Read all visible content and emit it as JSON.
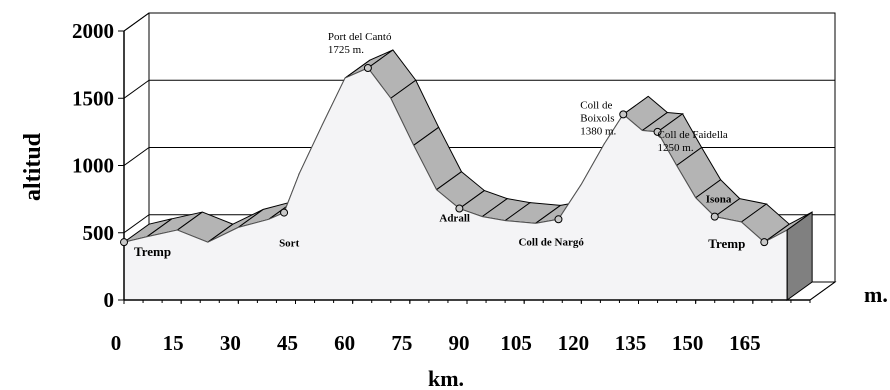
{
  "chart_data": {
    "type": "area",
    "title": "",
    "xlabel": "km.",
    "ylabel": "altitud",
    "y_unit": "m.",
    "xlim": [
      0,
      180
    ],
    "ylim": [
      0,
      2000
    ],
    "x_ticks": [
      "0",
      "15",
      "30",
      "45",
      "60",
      "75",
      "90",
      "105",
      "120",
      "135",
      "150",
      "165"
    ],
    "y_ticks": [
      "0",
      "500",
      "1000",
      "1500",
      "2000"
    ],
    "grid": "horizontal",
    "profile": [
      {
        "km": 0,
        "alt": 430
      },
      {
        "km": 6,
        "alt": 470
      },
      {
        "km": 14,
        "alt": 520
      },
      {
        "km": 22,
        "alt": 430
      },
      {
        "km": 30,
        "alt": 540
      },
      {
        "km": 38,
        "alt": 600
      },
      {
        "km": 42,
        "alt": 650
      },
      {
        "km": 46,
        "alt": 940
      },
      {
        "km": 52,
        "alt": 1300
      },
      {
        "km": 58,
        "alt": 1650
      },
      {
        "km": 64,
        "alt": 1725
      },
      {
        "km": 70,
        "alt": 1500
      },
      {
        "km": 76,
        "alt": 1150
      },
      {
        "km": 82,
        "alt": 820
      },
      {
        "km": 88,
        "alt": 680
      },
      {
        "km": 94,
        "alt": 620
      },
      {
        "km": 100,
        "alt": 590
      },
      {
        "km": 108,
        "alt": 570
      },
      {
        "km": 114,
        "alt": 600
      },
      {
        "km": 120,
        "alt": 860
      },
      {
        "km": 126,
        "alt": 1160
      },
      {
        "km": 131,
        "alt": 1380
      },
      {
        "km": 136,
        "alt": 1260
      },
      {
        "km": 140,
        "alt": 1250
      },
      {
        "km": 145,
        "alt": 1000
      },
      {
        "km": 150,
        "alt": 760
      },
      {
        "km": 155,
        "alt": 620
      },
      {
        "km": 162,
        "alt": 580
      },
      {
        "km": 168,
        "alt": 430
      },
      {
        "km": 174,
        "alt": 520
      }
    ],
    "annotations": [
      {
        "name": "Tremp",
        "km": 0,
        "alt": 430,
        "style": "place-big",
        "dx": 10,
        "dy": 14
      },
      {
        "name": "Sort",
        "km": 42,
        "alt": 650,
        "style": "place",
        "dx": -5,
        "dy": 34
      },
      {
        "name": "Port del Cantó",
        "altitude_label": "1725 m.",
        "km": 64,
        "alt": 1725,
        "style": "pass",
        "dx": -40,
        "dy": -28
      },
      {
        "name": "Adrall",
        "km": 88,
        "alt": 680,
        "style": "place",
        "dx": -20,
        "dy": 13
      },
      {
        "name": "Coll de Nargó",
        "km": 114,
        "alt": 600,
        "style": "place",
        "dx": -40,
        "dy": 26
      },
      {
        "name": "Coll de",
        "line2": "Boixols",
        "altitude_label": "1380 m.",
        "km": 131,
        "alt": 1380,
        "style": "pass",
        "dx": -43,
        "dy": -6
      },
      {
        "name": "Coll de Faidella",
        "altitude_label": "1250 m.",
        "km": 140,
        "alt": 1250,
        "style": "pass",
        "dx": 0,
        "dy": 6
      },
      {
        "name": "Isona",
        "km": 155,
        "alt": 620,
        "style": "place",
        "dx": -9,
        "dy": -14
      },
      {
        "name": "Tremp",
        "km": 168,
        "alt": 430,
        "style": "place-big",
        "dx": -56,
        "dy": 6
      }
    ]
  }
}
